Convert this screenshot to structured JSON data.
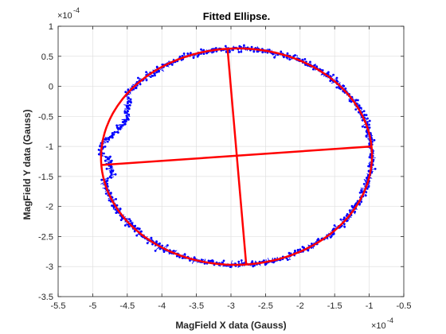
{
  "chart_data": {
    "type": "scatter",
    "title": "Fitted Ellipse.",
    "xlabel": "MagField X data (Gauss)",
    "ylabel": "MagField Y data (Gauss)",
    "x_multiplier": "×10",
    "x_exponent": "-4",
    "y_multiplier": "×10",
    "y_exponent": "-4",
    "xlim": [
      -5.5,
      -0.5
    ],
    "ylim": [
      -3.5,
      1
    ],
    "xticks": [
      "-5.5",
      "-5",
      "-4.5",
      "-4",
      "-3.5",
      "-3",
      "-2.5",
      "-2",
      "-1.5",
      "-1",
      "-0.5"
    ],
    "yticks": [
      "-3.5",
      "-3",
      "-2.5",
      "-2",
      "-1.5",
      "-1",
      "-0.5",
      "0",
      "0.5",
      "1"
    ],
    "grid": true,
    "ellipse": {
      "center": [
        -2.92,
        -1.17
      ],
      "semi_axis_x": 1.96,
      "semi_axis_y": 1.8,
      "tilt_deg": 3.3
    },
    "axis_lines": [
      {
        "x": [
          -4.88,
          -0.96
        ],
        "y": [
          -1.31,
          -1.0
        ]
      },
      {
        "x": [
          -3.05,
          -2.78
        ],
        "y": [
          0.63,
          -2.96
        ]
      }
    ],
    "colors": {
      "points": "#0000ff",
      "fit": "#ff0000",
      "grid": "#e0e0e0",
      "axes": "#262626"
    }
  }
}
